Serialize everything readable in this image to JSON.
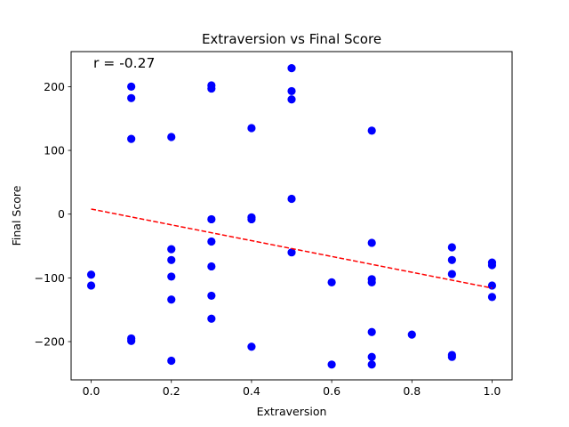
{
  "chart_data": {
    "type": "scatter",
    "title": "Extraversion vs Final Score",
    "xlabel": "Extraversion",
    "ylabel": "Final Score",
    "xlim": [
      -0.05,
      1.05
    ],
    "ylim": [
      -260,
      255
    ],
    "x_ticks": [
      0.0,
      0.2,
      0.4,
      0.6,
      0.8,
      1.0
    ],
    "x_tick_labels": [
      "0.0",
      "0.2",
      "0.4",
      "0.6",
      "0.8",
      "1.0"
    ],
    "y_ticks": [
      -200,
      -100,
      0,
      100,
      200
    ],
    "y_tick_labels": [
      "−200",
      "−100",
      "0",
      "100",
      "200"
    ],
    "grid": false,
    "annotation": "r = -0.27",
    "point_color": "#0000ff",
    "trend_color": "#ff0000",
    "series": [
      {
        "points": [
          [
            0.0,
            -95
          ],
          [
            0.0,
            -112
          ],
          [
            0.1,
            200
          ],
          [
            0.1,
            182
          ],
          [
            0.1,
            118
          ],
          [
            0.1,
            -195
          ],
          [
            0.1,
            -199
          ],
          [
            0.2,
            121
          ],
          [
            0.2,
            -55
          ],
          [
            0.2,
            -72
          ],
          [
            0.2,
            -98
          ],
          [
            0.2,
            -134
          ],
          [
            0.2,
            -230
          ],
          [
            0.3,
            202
          ],
          [
            0.3,
            197
          ],
          [
            0.3,
            -8
          ],
          [
            0.3,
            -43
          ],
          [
            0.3,
            -82
          ],
          [
            0.3,
            -128
          ],
          [
            0.3,
            -164
          ],
          [
            0.4,
            135
          ],
          [
            0.4,
            -5
          ],
          [
            0.4,
            -8
          ],
          [
            0.4,
            -208
          ],
          [
            0.5,
            229
          ],
          [
            0.5,
            193
          ],
          [
            0.5,
            180
          ],
          [
            0.5,
            24
          ],
          [
            0.5,
            -60
          ],
          [
            0.6,
            -107
          ],
          [
            0.6,
            -236
          ],
          [
            0.7,
            131
          ],
          [
            0.7,
            -45
          ],
          [
            0.7,
            -102
          ],
          [
            0.7,
            -107
          ],
          [
            0.7,
            -185
          ],
          [
            0.7,
            -224
          ],
          [
            0.7,
            -236
          ],
          [
            0.8,
            -189
          ],
          [
            0.9,
            -52
          ],
          [
            0.9,
            -72
          ],
          [
            0.9,
            -94
          ],
          [
            0.9,
            -221
          ],
          [
            0.9,
            -224
          ],
          [
            1.0,
            -76
          ],
          [
            1.0,
            -80
          ],
          [
            1.0,
            -112
          ],
          [
            1.0,
            -130
          ]
        ]
      }
    ],
    "trend_line": {
      "style": "dashed",
      "x": [
        0.0,
        1.0
      ],
      "y": [
        8,
        -116
      ]
    }
  }
}
